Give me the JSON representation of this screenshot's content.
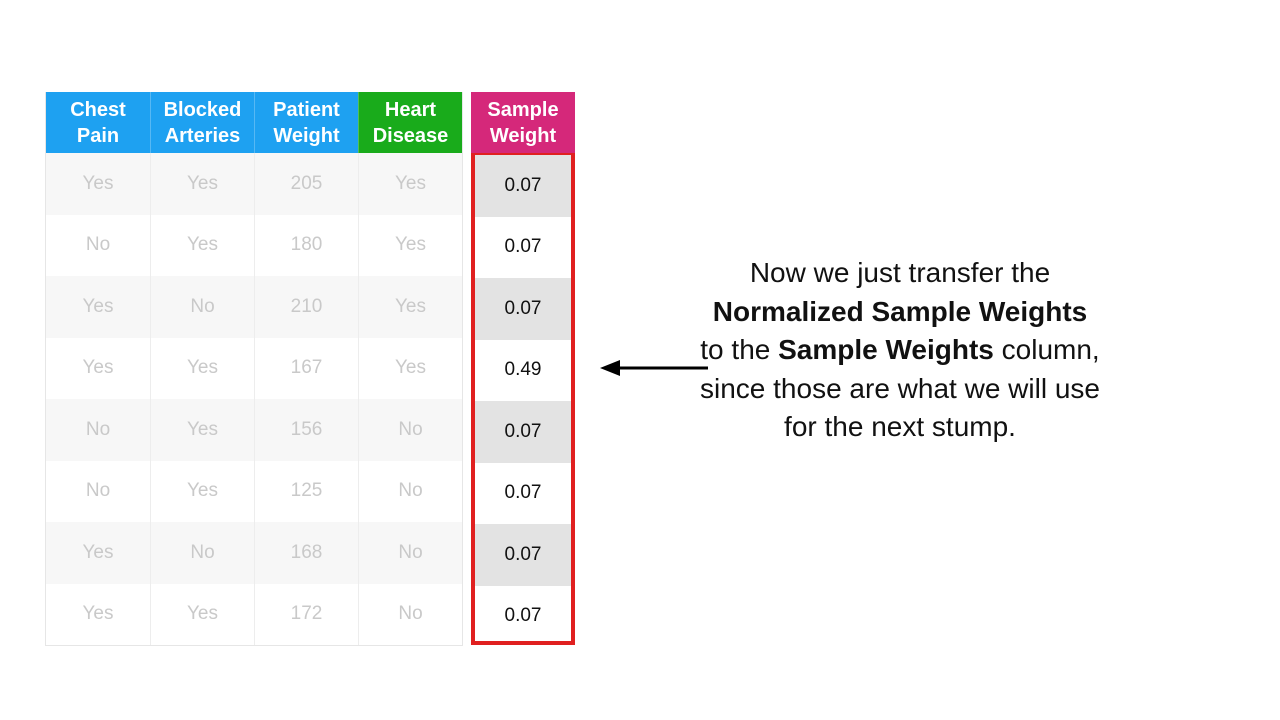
{
  "table": {
    "headers": [
      {
        "label": "Chest\nPain",
        "color": "#1ea1f1"
      },
      {
        "label": "Blocked\nArteries",
        "color": "#1ea1f1"
      },
      {
        "label": "Patient\nWeight",
        "color": "#1ea1f1"
      },
      {
        "label": "Heart\nDisease",
        "color": "#19ab1b"
      }
    ],
    "rows": [
      [
        "Yes",
        "Yes",
        "205",
        "Yes"
      ],
      [
        "No",
        "Yes",
        "180",
        "Yes"
      ],
      [
        "Yes",
        "No",
        "210",
        "Yes"
      ],
      [
        "Yes",
        "Yes",
        "167",
        "Yes"
      ],
      [
        "No",
        "Yes",
        "156",
        "No"
      ],
      [
        "No",
        "Yes",
        "125",
        "No"
      ],
      [
        "Yes",
        "No",
        "168",
        "No"
      ],
      [
        "Yes",
        "Yes",
        "172",
        "No"
      ]
    ]
  },
  "sample_weight": {
    "header": "Sample\nWeight",
    "header_color": "#d5287a",
    "highlight_color": "#e02020",
    "values": [
      "0.07",
      "0.07",
      "0.07",
      "0.49",
      "0.07",
      "0.07",
      "0.07",
      "0.07"
    ]
  },
  "explanation": {
    "part1": "Now we just transfer the",
    "bold1": "Normalized Sample Weights",
    "part2": "to the",
    "bold2": "Sample Weights",
    "part3": "column, since those are what we will use for the next stump."
  }
}
